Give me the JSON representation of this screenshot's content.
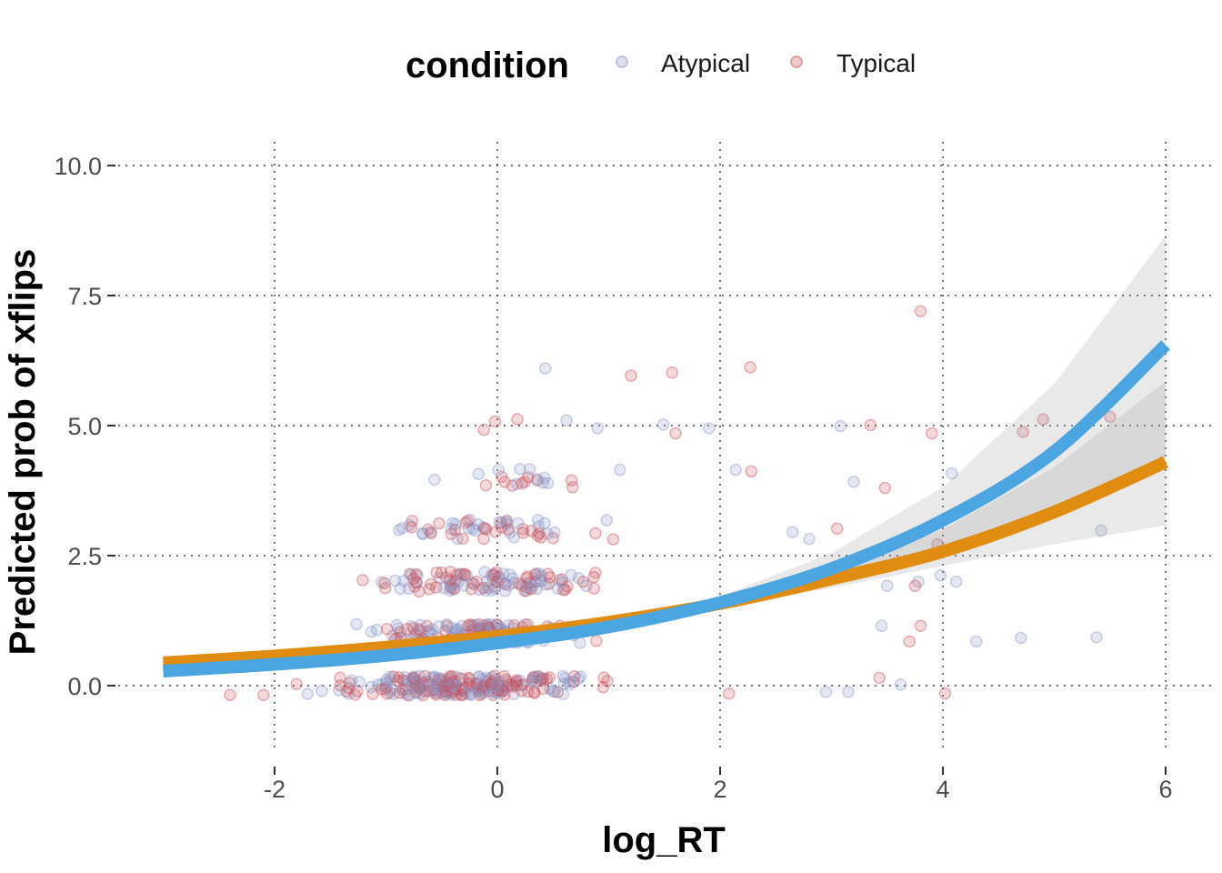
{
  "chart_data": {
    "type": "scatter",
    "xlabel": "log_RT",
    "ylabel": "Predicted prob of xflips",
    "xlim": [
      -3.4,
      6.4
    ],
    "ylim": [
      -1.3,
      10.5
    ],
    "x_ticks": [
      -2,
      0,
      2,
      4,
      6
    ],
    "y_ticks": [
      0,
      2.5,
      5,
      7.5,
      10
    ],
    "x_tick_labels": [
      "-2",
      "0",
      "2",
      "4",
      "6"
    ],
    "y_tick_labels": [
      "0.0",
      "2.5",
      "5.0",
      "7.5",
      "10.0"
    ],
    "grid": true,
    "legend": {
      "title": "condition",
      "position": "top",
      "entries": [
        {
          "label": "Atypical",
          "color": "#8a96c8"
        },
        {
          "label": "Typical",
          "color": "#c8505a"
        }
      ]
    },
    "series": [
      {
        "name": "Atypical",
        "kind": "points",
        "color": "#8a96c8",
        "outliers": [
          {
            "x": 0.43,
            "y": 6.1
          },
          {
            "x": 0.62,
            "y": 5.1
          },
          {
            "x": 0.9,
            "y": 4.95
          },
          {
            "x": 1.49,
            "y": 5.02
          },
          {
            "x": 1.9,
            "y": 4.95
          },
          {
            "x": 1.1,
            "y": 4.15
          },
          {
            "x": 2.14,
            "y": 4.15
          },
          {
            "x": 3.08,
            "y": 4.99
          },
          {
            "x": 3.2,
            "y": 3.92
          },
          {
            "x": 4.08,
            "y": 4.08
          },
          {
            "x": 2.65,
            "y": 2.95
          },
          {
            "x": 2.8,
            "y": 2.82
          },
          {
            "x": 5.42,
            "y": 2.98
          },
          {
            "x": 3.45,
            "y": 1.15
          },
          {
            "x": 4.7,
            "y": 0.92
          },
          {
            "x": 5.38,
            "y": 0.93
          },
          {
            "x": 4.3,
            "y": 0.85
          },
          {
            "x": 3.78,
            "y": 2.0
          },
          {
            "x": 3.98,
            "y": 2.12
          },
          {
            "x": 4.12,
            "y": 2.0
          },
          {
            "x": 3.5,
            "y": 1.92
          },
          {
            "x": 2.95,
            "y": -0.12
          },
          {
            "x": 3.15,
            "y": -0.12
          },
          {
            "x": 3.62,
            "y": 0.02
          }
        ]
      },
      {
        "name": "Typical",
        "kind": "points",
        "color": "#c8505a",
        "outliers": [
          {
            "x": 3.8,
            "y": 7.2
          },
          {
            "x": 2.27,
            "y": 6.12
          },
          {
            "x": 1.57,
            "y": 6.02
          },
          {
            "x": 1.2,
            "y": 5.96
          },
          {
            "x": -0.02,
            "y": 5.08
          },
          {
            "x": 0.18,
            "y": 5.12
          },
          {
            "x": -0.12,
            "y": 4.92
          },
          {
            "x": 1.6,
            "y": 4.85
          },
          {
            "x": 3.35,
            "y": 5.01
          },
          {
            "x": 3.9,
            "y": 4.85
          },
          {
            "x": 4.72,
            "y": 4.88
          },
          {
            "x": 4.9,
            "y": 5.12
          },
          {
            "x": 5.5,
            "y": 5.17
          },
          {
            "x": 2.28,
            "y": 4.12
          },
          {
            "x": 3.48,
            "y": 3.8
          },
          {
            "x": 3.05,
            "y": 3.02
          },
          {
            "x": 3.95,
            "y": 2.72
          },
          {
            "x": 3.75,
            "y": 1.92
          },
          {
            "x": 3.8,
            "y": 1.15
          },
          {
            "x": 3.7,
            "y": 0.85
          },
          {
            "x": 3.43,
            "y": 0.15
          },
          {
            "x": 4.02,
            "y": -0.15
          },
          {
            "x": 2.08,
            "y": -0.15
          },
          {
            "x": -2.4,
            "y": -0.18
          },
          {
            "x": -2.1,
            "y": -0.18
          }
        ]
      },
      {
        "name": "Atypical",
        "kind": "fit",
        "color": "#4aa5e0",
        "x": [
          -3.0,
          -2.0,
          -1.0,
          0.0,
          1.0,
          2.0,
          3.0,
          4.0,
          5.0,
          6.0
        ],
        "y": [
          0.28,
          0.41,
          0.58,
          0.82,
          1.13,
          1.6,
          2.25,
          3.18,
          4.5,
          6.55
        ],
        "ci_low": [
          0.2,
          0.33,
          0.52,
          0.77,
          1.07,
          1.5,
          2.0,
          2.65,
          3.45,
          4.4
        ],
        "ci_high": [
          0.38,
          0.5,
          0.65,
          0.88,
          1.2,
          1.72,
          2.55,
          3.82,
          5.8,
          8.65
        ]
      },
      {
        "name": "Typical",
        "kind": "fit",
        "color": "#e08c10",
        "x": [
          -3.0,
          -2.0,
          -1.0,
          0.0,
          1.0,
          2.0,
          3.0,
          4.0,
          5.0,
          6.0
        ],
        "y": [
          0.44,
          0.57,
          0.74,
          0.95,
          1.22,
          1.58,
          2.05,
          2.58,
          3.34,
          4.3
        ],
        "ci_low": [
          0.36,
          0.5,
          0.68,
          0.9,
          1.16,
          1.5,
          1.88,
          2.3,
          2.72,
          3.08
        ],
        "ci_high": [
          0.52,
          0.64,
          0.8,
          1.0,
          1.28,
          1.66,
          2.25,
          3.0,
          4.2,
          5.85
        ]
      }
    ]
  }
}
